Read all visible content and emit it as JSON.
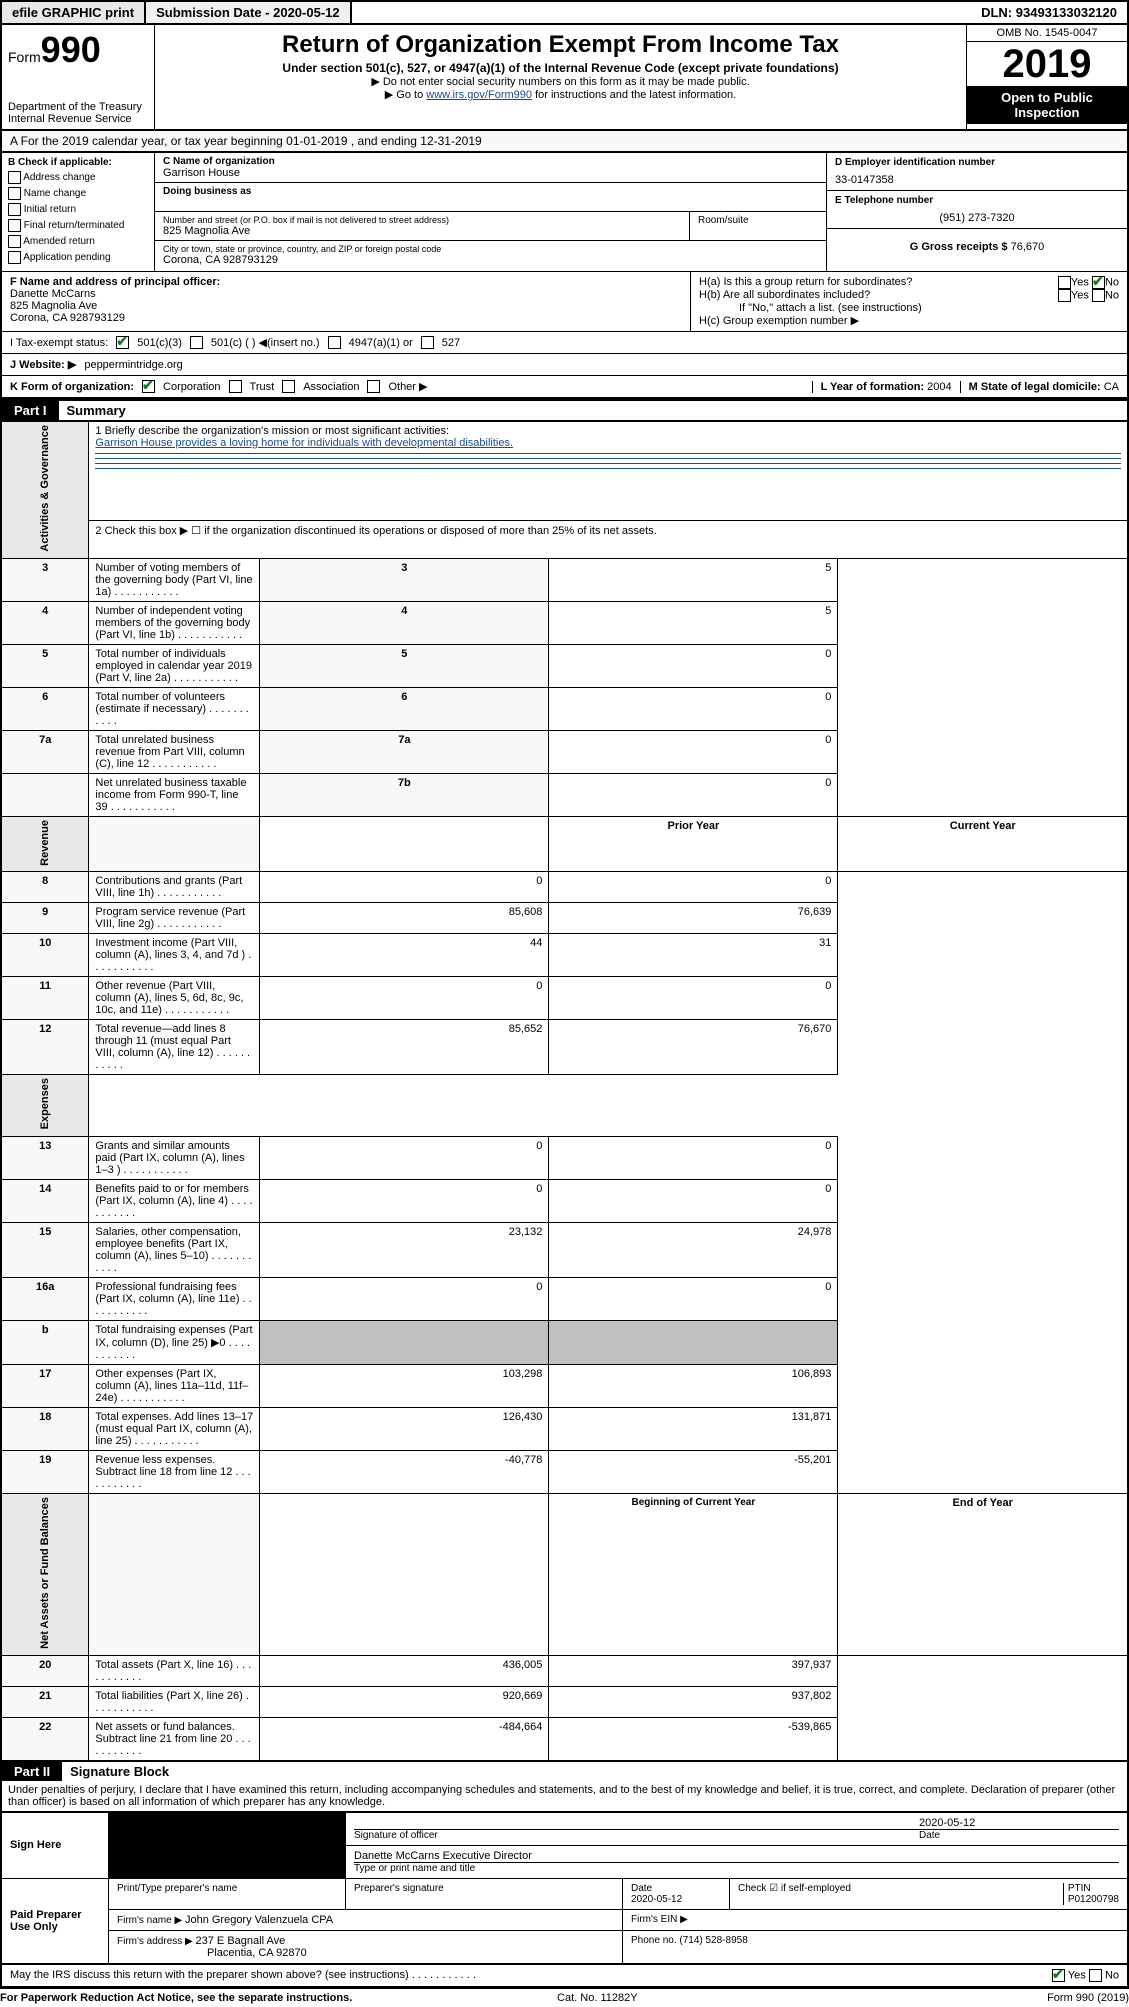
{
  "topbar": {
    "efile": "efile GRAPHIC print",
    "submission_label": "Submission Date - ",
    "submission_date": "2020-05-12",
    "dln_label": "DLN: ",
    "dln": "93493133032120"
  },
  "header": {
    "form_label": "Form",
    "form_number": "990",
    "dept": "Department of the Treasury",
    "irs": "Internal Revenue Service",
    "title": "Return of Organization Exempt From Income Tax",
    "subtitle": "Under section 501(c), 527, or 4947(a)(1) of the Internal Revenue Code (except private foundations)",
    "note1": "▶ Do not enter social security numbers on this form as it may be made public.",
    "note2_pre": "▶ Go to ",
    "note2_link": "www.irs.gov/Form990",
    "note2_post": " for instructions and the latest information.",
    "omb": "OMB No. 1545-0047",
    "year": "2019",
    "inspection": "Open to Public Inspection"
  },
  "row_a": "A For the 2019 calendar year, or tax year beginning 01-01-2019    , and ending 12-31-2019",
  "section_b": {
    "title": "B Check if applicable:",
    "items": [
      "Address change",
      "Name change",
      "Initial return",
      "Final return/terminated",
      "Amended return",
      "Application pending"
    ]
  },
  "section_c": {
    "name_label": "C Name of organization",
    "name": "Garrison House",
    "dba_label": "Doing business as",
    "dba": "",
    "addr_label": "Number and street (or P.O. box if mail is not delivered to street address)",
    "room_label": "Room/suite",
    "addr": "825 Magnolia Ave",
    "city_label": "City or town, state or province, country, and ZIP or foreign postal code",
    "city": "Corona, CA  928793129"
  },
  "section_d": {
    "ein_label": "D Employer identification number",
    "ein": "33-0147358",
    "phone_label": "E Telephone number",
    "phone": "(951) 273-7320",
    "gross_label": "G Gross receipts $ ",
    "gross": "76,670"
  },
  "section_f": {
    "label": "F  Name and address of principal officer:",
    "name": "Danette McCarns",
    "addr1": "825 Magnolia Ave",
    "addr2": "Corona, CA  928793129"
  },
  "section_h": {
    "ha": "H(a)  Is this a group return for subordinates?",
    "hb": "H(b)  Are all subordinates included?",
    "hb_note": "If \"No,\" attach a list. (see instructions)",
    "hc": "H(c)  Group exemption number ▶",
    "yes": "Yes",
    "no": "No"
  },
  "row_i": {
    "label": "I    Tax-exempt status:",
    "opt1": "501(c)(3)",
    "opt2": "501(c) (   ) ◀(insert no.)",
    "opt3": "4947(a)(1) or",
    "opt4": "527"
  },
  "row_j": {
    "label": "J   Website: ▶",
    "value": "  peppermintridge.org"
  },
  "row_k": {
    "label": "K Form of organization:",
    "opts": [
      "Corporation",
      "Trust",
      "Association",
      "Other ▶"
    ],
    "l_label": "L Year of formation: ",
    "l_val": "2004",
    "m_label": "M State of legal domicile: ",
    "m_val": "CA"
  },
  "part1": {
    "header": "Part I",
    "title": "Summary",
    "vtab1": "Activities & Governance",
    "vtab2": "Revenue",
    "vtab3": "Expenses",
    "vtab4": "Net Assets or Fund Balances",
    "q1_label": "1  Briefly describe the organization's mission or most significant activities:",
    "q1_text": "Garrison House provides a loving home for individuals with developmental disabilities.",
    "q2": "2   Check this box ▶ ☐  if the organization discontinued its operations or disposed of more than 25% of its net assets.",
    "rows_gov": [
      {
        "n": "3",
        "t": "Number of voting members of the governing body (Part VI, line 1a)",
        "rn": "3",
        "v": "5"
      },
      {
        "n": "4",
        "t": "Number of independent voting members of the governing body (Part VI, line 1b)",
        "rn": "4",
        "v": "5"
      },
      {
        "n": "5",
        "t": "Total number of individuals employed in calendar year 2019 (Part V, line 2a)",
        "rn": "5",
        "v": "0"
      },
      {
        "n": "6",
        "t": "Total number of volunteers (estimate if necessary)",
        "rn": "6",
        "v": "0"
      },
      {
        "n": "7a",
        "t": "Total unrelated business revenue from Part VIII, column (C), line 12",
        "rn": "7a",
        "v": "0"
      },
      {
        "n": "",
        "t": "Net unrelated business taxable income from Form 990-T, line 39",
        "rn": "7b",
        "v": "0"
      }
    ],
    "col_prior": "Prior Year",
    "col_current": "Current Year",
    "rows_rev": [
      {
        "n": "8",
        "t": "Contributions and grants (Part VIII, line 1h)",
        "p": "0",
        "c": "0"
      },
      {
        "n": "9",
        "t": "Program service revenue (Part VIII, line 2g)",
        "p": "85,608",
        "c": "76,639"
      },
      {
        "n": "10",
        "t": "Investment income (Part VIII, column (A), lines 3, 4, and 7d )",
        "p": "44",
        "c": "31"
      },
      {
        "n": "11",
        "t": "Other revenue (Part VIII, column (A), lines 5, 6d, 8c, 9c, 10c, and 11e)",
        "p": "0",
        "c": "0"
      },
      {
        "n": "12",
        "t": "Total revenue—add lines 8 through 11 (must equal Part VIII, column (A), line 12)",
        "p": "85,652",
        "c": "76,670"
      }
    ],
    "rows_exp": [
      {
        "n": "13",
        "t": "Grants and similar amounts paid (Part IX, column (A), lines 1–3 )",
        "p": "0",
        "c": "0"
      },
      {
        "n": "14",
        "t": "Benefits paid to or for members (Part IX, column (A), line 4)",
        "p": "0",
        "c": "0"
      },
      {
        "n": "15",
        "t": "Salaries, other compensation, employee benefits (Part IX, column (A), lines 5–10)",
        "p": "23,132",
        "c": "24,978"
      },
      {
        "n": "16a",
        "t": "Professional fundraising fees (Part IX, column (A), line 11e)",
        "p": "0",
        "c": "0"
      },
      {
        "n": "b",
        "t": "Total fundraising expenses (Part IX, column (D), line 25) ▶0",
        "p": "",
        "c": "",
        "grey": true
      },
      {
        "n": "17",
        "t": "Other expenses (Part IX, column (A), lines 11a–11d, 11f–24e)",
        "p": "103,298",
        "c": "106,893"
      },
      {
        "n": "18",
        "t": "Total expenses. Add lines 13–17 (must equal Part IX, column (A), line 25)",
        "p": "126,430",
        "c": "131,871"
      },
      {
        "n": "19",
        "t": "Revenue less expenses. Subtract line 18 from line 12",
        "p": "-40,778",
        "c": "-55,201"
      }
    ],
    "col_begin": "Beginning of Current Year",
    "col_end": "End of Year",
    "rows_net": [
      {
        "n": "20",
        "t": "Total assets (Part X, line 16)",
        "p": "436,005",
        "c": "397,937"
      },
      {
        "n": "21",
        "t": "Total liabilities (Part X, line 26)",
        "p": "920,669",
        "c": "937,802"
      },
      {
        "n": "22",
        "t": "Net assets or fund balances. Subtract line 21 from line 20",
        "p": "-484,664",
        "c": "-539,865"
      }
    ]
  },
  "part2": {
    "header": "Part II",
    "title": "Signature Block",
    "perjury": "Under penalties of perjury, I declare that I have examined this return, including accompanying schedules and statements, and to the best of my knowledge and belief, it is true, correct, and complete. Declaration of preparer (other than officer) is based on all information of which preparer has any knowledge.",
    "sign_here": "Sign Here",
    "sig_officer": "Signature of officer",
    "sig_date": "2020-05-12",
    "date_label": "Date",
    "officer_name": "Danette McCarns  Executive Director",
    "type_name": "Type or print name and title",
    "paid": "Paid Preparer Use Only",
    "prep_name_label": "Print/Type preparer's name",
    "prep_sig_label": "Preparer's signature",
    "prep_date": "2020-05-12",
    "check_if": "Check ☑ if self-employed",
    "ptin_label": "PTIN",
    "ptin": "P01200798",
    "firm_name_label": "Firm's name     ▶ ",
    "firm_name": "John Gregory Valenzuela CPA",
    "firm_ein_label": "Firm's EIN ▶",
    "firm_addr_label": "Firm's address ▶ ",
    "firm_addr1": "237 E Bagnall Ave",
    "firm_addr2": "Placentia, CA  92870",
    "phone_label": "Phone no. ",
    "phone": "(714) 528-8958",
    "discuss": "May the IRS discuss this return with the preparer shown above? (see instructions)",
    "yes": "Yes",
    "no": "No"
  },
  "footer": {
    "paperwork": "For Paperwork Reduction Act Notice, see the separate instructions.",
    "cat": "Cat. No. 11282Y",
    "form": "Form 990 (2019)"
  }
}
